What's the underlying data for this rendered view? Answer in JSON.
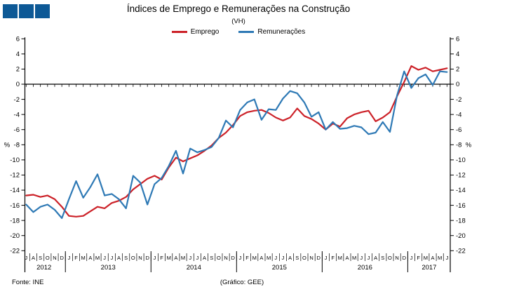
{
  "header": {
    "title": "Índices de Emprego e Remunerações na Construção",
    "subtitle": "(VH)"
  },
  "decor": {
    "square_count": 3,
    "squares_color": "#0D5996"
  },
  "footer": {
    "source": "Fonte: INE",
    "credit": "(Gráfico: GEE)"
  },
  "chart_data": {
    "type": "line",
    "title": "Índices de Emprego e Remunerações na Construção",
    "subtitle": "(VH)",
    "unit_label": "%",
    "ylim": [
      -22,
      6
    ],
    "yticks": [
      6,
      4,
      2,
      0,
      -2,
      -4,
      -6,
      -8,
      -10,
      -12,
      -14,
      -16,
      -18,
      -20,
      -22
    ],
    "grid": false,
    "legend_position": "top",
    "x_months": [
      "J",
      "A",
      "S",
      "O",
      "N",
      "D",
      "J",
      "F",
      "M",
      "A",
      "M",
      "J",
      "J",
      "A",
      "S",
      "O",
      "N",
      "D",
      "J",
      "F",
      "M",
      "A",
      "M",
      "J",
      "J",
      "A",
      "S",
      "O",
      "N",
      "D",
      "J",
      "F",
      "M",
      "A",
      "M",
      "J",
      "J",
      "A",
      "S",
      "O",
      "N",
      "D",
      "J",
      "F",
      "M",
      "A",
      "M",
      "J",
      "J",
      "A",
      "S",
      "O",
      "N",
      "D",
      "J",
      "F",
      "M",
      "A",
      "M",
      "J"
    ],
    "years": [
      {
        "label": "2012",
        "start": 0,
        "end": 5
      },
      {
        "label": "2013",
        "start": 6,
        "end": 17
      },
      {
        "label": "2014",
        "start": 18,
        "end": 29
      },
      {
        "label": "2015",
        "start": 30,
        "end": 41
      },
      {
        "label": "2016",
        "start": 42,
        "end": 53
      },
      {
        "label": "2017",
        "start": 54,
        "end": 59
      }
    ],
    "series": [
      {
        "name": "Emprego",
        "color": "#CC2128",
        "values": [
          -14.7,
          -14.6,
          -14.9,
          -14.7,
          -15.2,
          -16.2,
          -17.4,
          -17.5,
          -17.4,
          -16.8,
          -16.2,
          -16.4,
          -15.7,
          -15.4,
          -14.9,
          -13.9,
          -13.2,
          -12.5,
          -12.1,
          -12.6,
          -11.0,
          -9.7,
          -10.2,
          -9.8,
          -9.4,
          -8.8,
          -8.1,
          -7.1,
          -6.4,
          -5.4,
          -4.2,
          -3.7,
          -3.5,
          -3.4,
          -3.8,
          -4.4,
          -4.8,
          -4.4,
          -3.2,
          -4.2,
          -4.6,
          -5.2,
          -6.0,
          -5.2,
          -5.6,
          -4.5,
          -4.0,
          -3.7,
          -3.5,
          -4.9,
          -4.4,
          -3.7,
          -1.6,
          0.3,
          2.4,
          1.9,
          2.2,
          1.7,
          1.9,
          2.1
        ]
      },
      {
        "name": "Remunerações",
        "color": "#2E79B5",
        "values": [
          -15.9,
          -16.9,
          -16.2,
          -15.9,
          -16.6,
          -17.7,
          -15.2,
          -12.8,
          -15.0,
          -13.6,
          -11.9,
          -14.7,
          -14.5,
          -15.2,
          -16.4,
          -12.1,
          -13.0,
          -15.9,
          -13.2,
          -12.4,
          -10.8,
          -8.8,
          -11.8,
          -8.5,
          -9.0,
          -8.7,
          -8.3,
          -7.1,
          -4.8,
          -5.7,
          -3.4,
          -2.4,
          -2.0,
          -4.7,
          -3.3,
          -3.4,
          -1.9,
          -0.9,
          -1.2,
          -2.4,
          -4.3,
          -3.7,
          -6.0,
          -5.0,
          -5.9,
          -5.8,
          -5.5,
          -5.7,
          -6.6,
          -6.4,
          -5.0,
          -6.3,
          -1.5,
          1.7,
          -0.5,
          0.8,
          1.3,
          -0.1,
          1.7,
          1.6
        ]
      }
    ]
  }
}
